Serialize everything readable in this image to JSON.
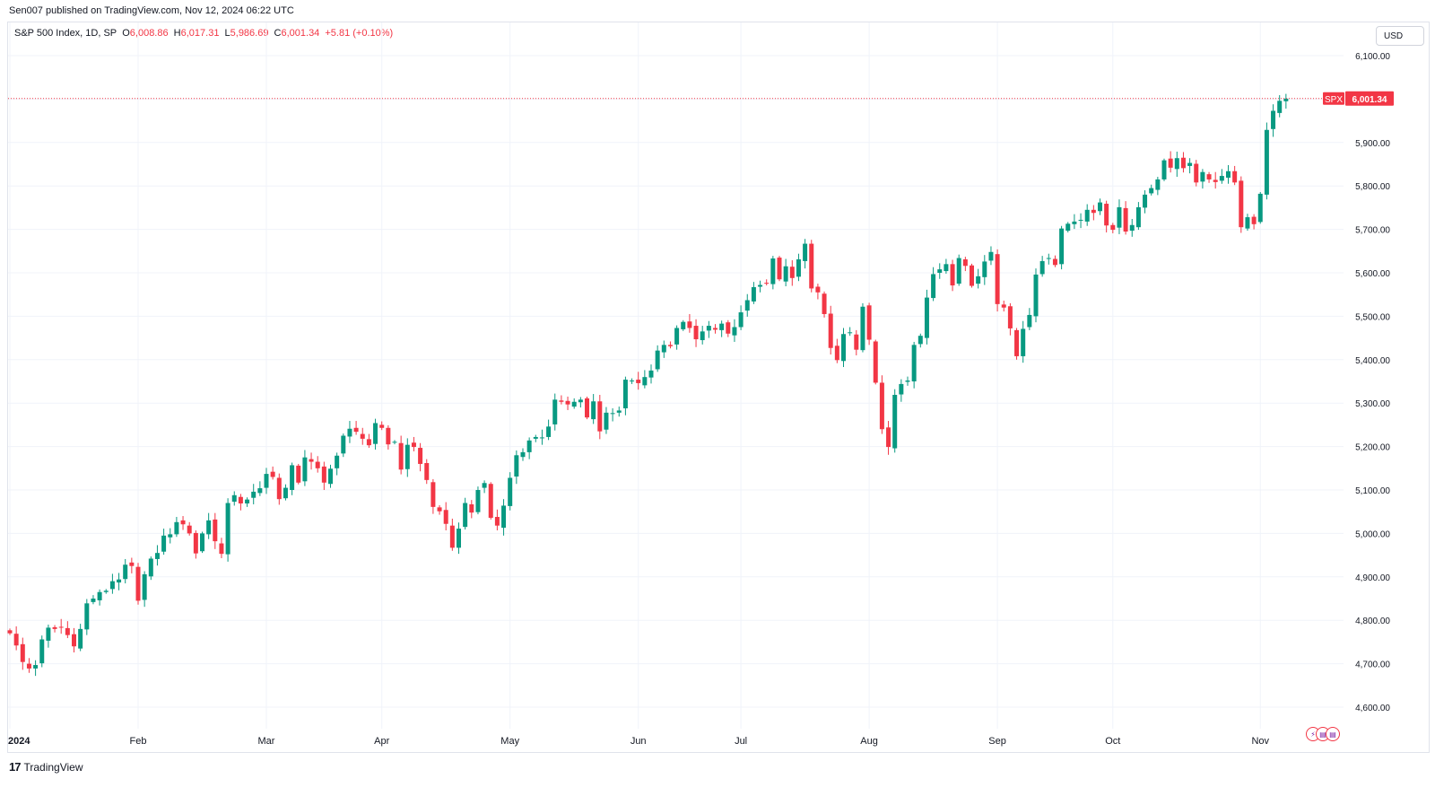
{
  "publisher_line": "Sen007 published on TradingView.com, Nov 12, 2024 06:22 UTC",
  "legend": {
    "symbol": "S&P 500 Index, 1D, SP",
    "open_label": "O",
    "open": "6,008.86",
    "high_label": "H",
    "high": "6,017.31",
    "low_label": "L",
    "low": "5,986.69",
    "close_label": "C",
    "close": "6,001.34",
    "change": "+5.81 (+0.10%)"
  },
  "currency": "USD",
  "last_price_tag": {
    "ticker": "SPX",
    "price": "6,001.34",
    "value": 6001.34
  },
  "footer_brand": "TradingView",
  "footer_logo_glyph": "17",
  "badge_icons": [
    "lightning-icon",
    "us-flag-icon",
    "us-flag-icon"
  ],
  "colors": {
    "up": "#089981",
    "down": "#f23645",
    "grid": "#f0f3fa",
    "axis_text": "#131722"
  },
  "chart_data": {
    "type": "candlestick",
    "title": "S&P 500 Index, 1D, SP",
    "ylim": [
      4550,
      6150
    ],
    "y_ticks": [
      {
        "value": 4600,
        "label": "4,600.00"
      },
      {
        "value": 4700,
        "label": "4,700.00"
      },
      {
        "value": 4800,
        "label": "4,800.00"
      },
      {
        "value": 4900,
        "label": "4,900.00"
      },
      {
        "value": 5000,
        "label": "5,000.00"
      },
      {
        "value": 5100,
        "label": "5,100.00"
      },
      {
        "value": 5200,
        "label": "5,200.00"
      },
      {
        "value": 5300,
        "label": "5,300.00"
      },
      {
        "value": 5400,
        "label": "5,400.00"
      },
      {
        "value": 5500,
        "label": "5,500.00"
      },
      {
        "value": 5600,
        "label": "5,600.00"
      },
      {
        "value": 5700,
        "label": "5,700.00"
      },
      {
        "value": 5800,
        "label": "5,800.00"
      },
      {
        "value": 5900,
        "label": "5,900.00"
      },
      {
        "value": 6000,
        "label": "6,000.00"
      },
      {
        "value": 6100,
        "label": "6,100.00"
      }
    ],
    "x_ticks": [
      {
        "index": 0,
        "label": "2024"
      },
      {
        "index": 20,
        "label": "Feb"
      },
      {
        "index": 40,
        "label": "Mar"
      },
      {
        "index": 58,
        "label": "Apr"
      },
      {
        "index": 78,
        "label": "May"
      },
      {
        "index": 98,
        "label": "Jun"
      },
      {
        "index": 114,
        "label": "Jul"
      },
      {
        "index": 134,
        "label": "Aug"
      },
      {
        "index": 154,
        "label": "Sep"
      },
      {
        "index": 172,
        "label": "Oct"
      },
      {
        "index": 195,
        "label": "Nov"
      }
    ],
    "closes": [
      4770,
      4742,
      4704,
      4689,
      4697,
      4756,
      4783,
      4780,
      4784,
      4766,
      4740,
      4780,
      4839,
      4850,
      4865,
      4868,
      4890,
      4894,
      4928,
      4925,
      4845,
      4906,
      4942,
      4955,
      4995,
      4998,
      5026,
      5021,
      5000,
      4954,
      5000,
      5030,
      4982,
      4953,
      5070,
      5088,
      5069,
      5078,
      5096,
      5104,
      5137,
      5130,
      5079,
      5105,
      5157,
      5117,
      5175,
      5165,
      5150,
      5117,
      5149,
      5179,
      5225,
      5241,
      5234,
      5218,
      5203,
      5254,
      5243,
      5205,
      5211,
      5147,
      5204,
      5199,
      5160,
      5123,
      5061,
      5051,
      5022,
      4967,
      5011,
      5070,
      5048,
      5100,
      5116,
      5036,
      5018,
      5064,
      5128,
      5180,
      5187,
      5214,
      5222,
      5221,
      5246,
      5308,
      5303,
      5297,
      5303,
      5308,
      5267,
      5304,
      5235,
      5278,
      5277,
      5283,
      5354,
      5352,
      5346,
      5360,
      5375,
      5421,
      5434,
      5431,
      5473,
      5487,
      5473,
      5447,
      5465,
      5478,
      5469,
      5483,
      5460,
      5475,
      5509,
      5537,
      5567,
      5572,
      5576,
      5633,
      5585,
      5615,
      5588,
      5631,
      5667,
      5564,
      5555,
      5505,
      5427,
      5399,
      5459,
      5463,
      5423,
      5522,
      5446,
      5347,
      5240,
      5199,
      5319,
      5344,
      5352,
      5434,
      5455,
      5543,
      5597,
      5608,
      5620,
      5571,
      5634,
      5616,
      5570,
      5592,
      5626,
      5648,
      5528,
      5520,
      5472,
      5408,
      5471,
      5503,
      5596,
      5627,
      5634,
      5618,
      5702,
      5713,
      5718,
      5722,
      5745,
      5738,
      5762,
      5709,
      5699,
      5751,
      5695,
      5710,
      5751,
      5780,
      5795,
      5815,
      5859,
      5842,
      5864,
      5841,
      5853,
      5808,
      5832,
      5815,
      5809,
      5823,
      5834,
      5808,
      5705,
      5728,
      5712,
      5782,
      5929,
      5973,
      5996,
      6001
    ],
    "sessions": 200
  }
}
